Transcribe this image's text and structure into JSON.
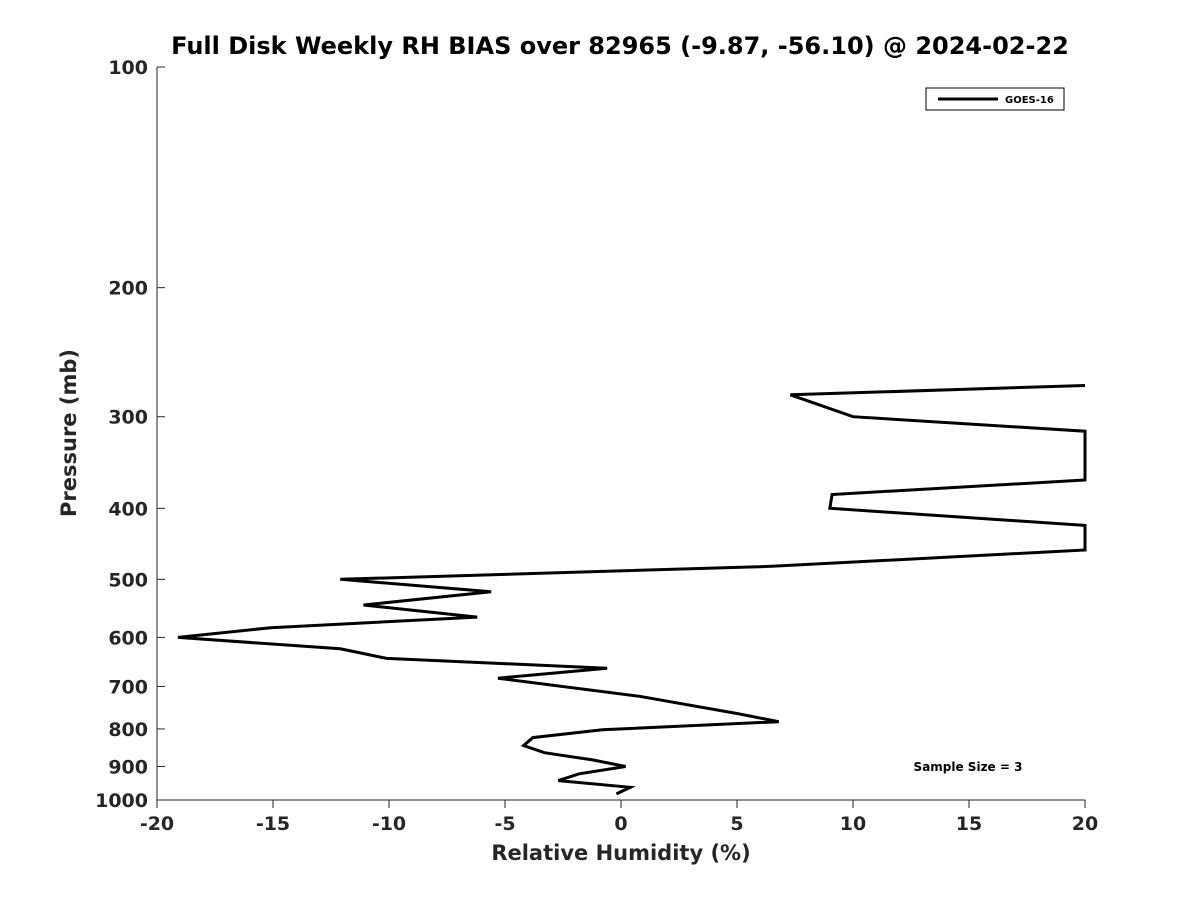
{
  "chart_data": {
    "type": "line",
    "title": "Full Disk Weekly RH BIAS over 82965 (-9.87, -56.10) @ 2024-02-22",
    "xlabel": "Relative Humidity (%)",
    "ylabel": "Pressure (mb)",
    "xlim": [
      -20,
      20
    ],
    "ylim": [
      1000,
      100
    ],
    "yscale": "log",
    "xticks": [
      -20,
      -15,
      -10,
      -5,
      0,
      5,
      10,
      15,
      20
    ],
    "xtick_labels": [
      "-20",
      "-15",
      "-10",
      "-5",
      "0",
      "5",
      "10",
      "15",
      "20"
    ],
    "yticks": [
      100,
      200,
      300,
      400,
      500,
      600,
      700,
      800,
      900,
      1000
    ],
    "ytick_labels": [
      "100",
      "200",
      "300",
      "400",
      "500",
      "600",
      "700",
      "800",
      "900",
      "1000"
    ],
    "grid": false,
    "legend_position": "top-right",
    "series": [
      {
        "name": "GOES-16",
        "color": "#000000",
        "points": [
          {
            "x": 20,
            "y": 272
          },
          {
            "x": 7.3,
            "y": 280
          },
          {
            "x": 10,
            "y": 300
          },
          {
            "x": 20,
            "y": 314
          },
          {
            "x": 20,
            "y": 366
          },
          {
            "x": 9.1,
            "y": 383
          },
          {
            "x": 9.0,
            "y": 400
          },
          {
            "x": 20,
            "y": 422
          },
          {
            "x": 20,
            "y": 456
          },
          {
            "x": 6.5,
            "y": 480
          },
          {
            "x": -12.1,
            "y": 500
          },
          {
            "x": -5.6,
            "y": 520
          },
          {
            "x": -11.1,
            "y": 542
          },
          {
            "x": -6.2,
            "y": 563
          },
          {
            "x": -15.1,
            "y": 582
          },
          {
            "x": -19.1,
            "y": 600
          },
          {
            "x": -12.1,
            "y": 622
          },
          {
            "x": -10.1,
            "y": 641
          },
          {
            "x": -0.6,
            "y": 661
          },
          {
            "x": -5.3,
            "y": 682
          },
          {
            "x": 0.8,
            "y": 722
          },
          {
            "x": 5.0,
            "y": 762
          },
          {
            "x": 6.8,
            "y": 782
          },
          {
            "x": -0.8,
            "y": 802
          },
          {
            "x": -3.8,
            "y": 822
          },
          {
            "x": -4.2,
            "y": 843
          },
          {
            "x": -3.3,
            "y": 862
          },
          {
            "x": -1.2,
            "y": 882
          },
          {
            "x": 0.2,
            "y": 900
          },
          {
            "x": -1.8,
            "y": 921
          },
          {
            "x": -2.7,
            "y": 941
          },
          {
            "x": 0.4,
            "y": 961
          },
          {
            "x": -0.2,
            "y": 981
          }
        ]
      }
    ],
    "annotation": "Sample Size = 3"
  }
}
